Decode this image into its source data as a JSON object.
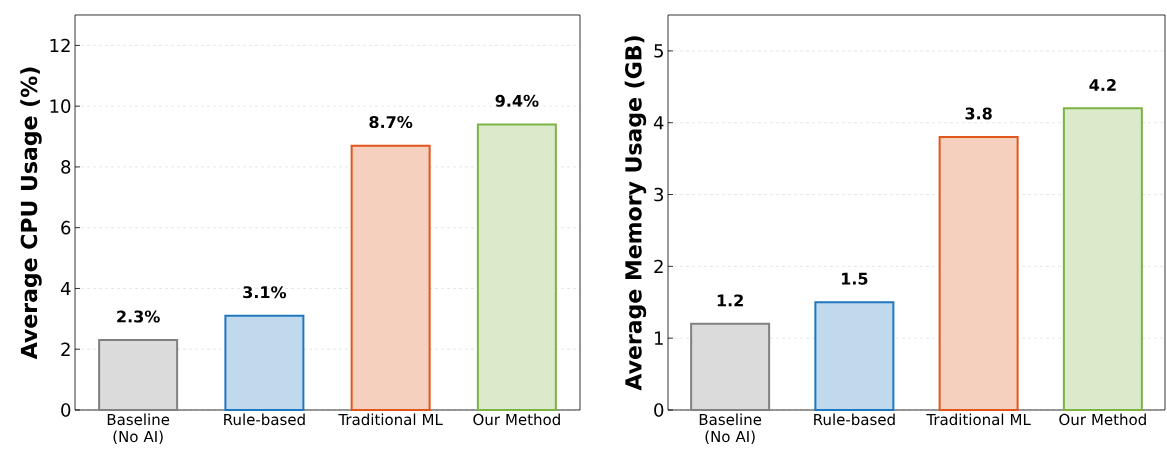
{
  "chart_data": [
    {
      "type": "bar",
      "categories": [
        "Baseline (No AI)",
        "Rule-based",
        "Traditional ML",
        "Our Method"
      ],
      "values": [
        2.3,
        3.1,
        8.7,
        9.4
      ],
      "colors": [
        "#808080",
        "#1f77c0",
        "#e0561c",
        "#7cb342"
      ],
      "ylabel": "Average CPU Usage (%)",
      "ylim": [
        0,
        13
      ],
      "yticks": [
        0,
        2,
        4,
        6,
        8,
        10,
        12
      ],
      "grid": "y",
      "value_labels": [
        "2.3%",
        "3.1%",
        "8.7%",
        "9.4%"
      ]
    },
    {
      "type": "bar",
      "categories": [
        "Baseline (No AI)",
        "Rule-based",
        "Traditional ML",
        "Our Method"
      ],
      "values": [
        1.2,
        1.5,
        3.8,
        4.2
      ],
      "colors": [
        "#808080",
        "#1f77c0",
        "#e0561c",
        "#7cb342"
      ],
      "ylabel": "Average Memory Usage (GB)",
      "ylim": [
        0,
        5.5
      ],
      "yticks": [
        0,
        1,
        2,
        3,
        4,
        5
      ],
      "grid": "y",
      "data_labels": true
    }
  ]
}
